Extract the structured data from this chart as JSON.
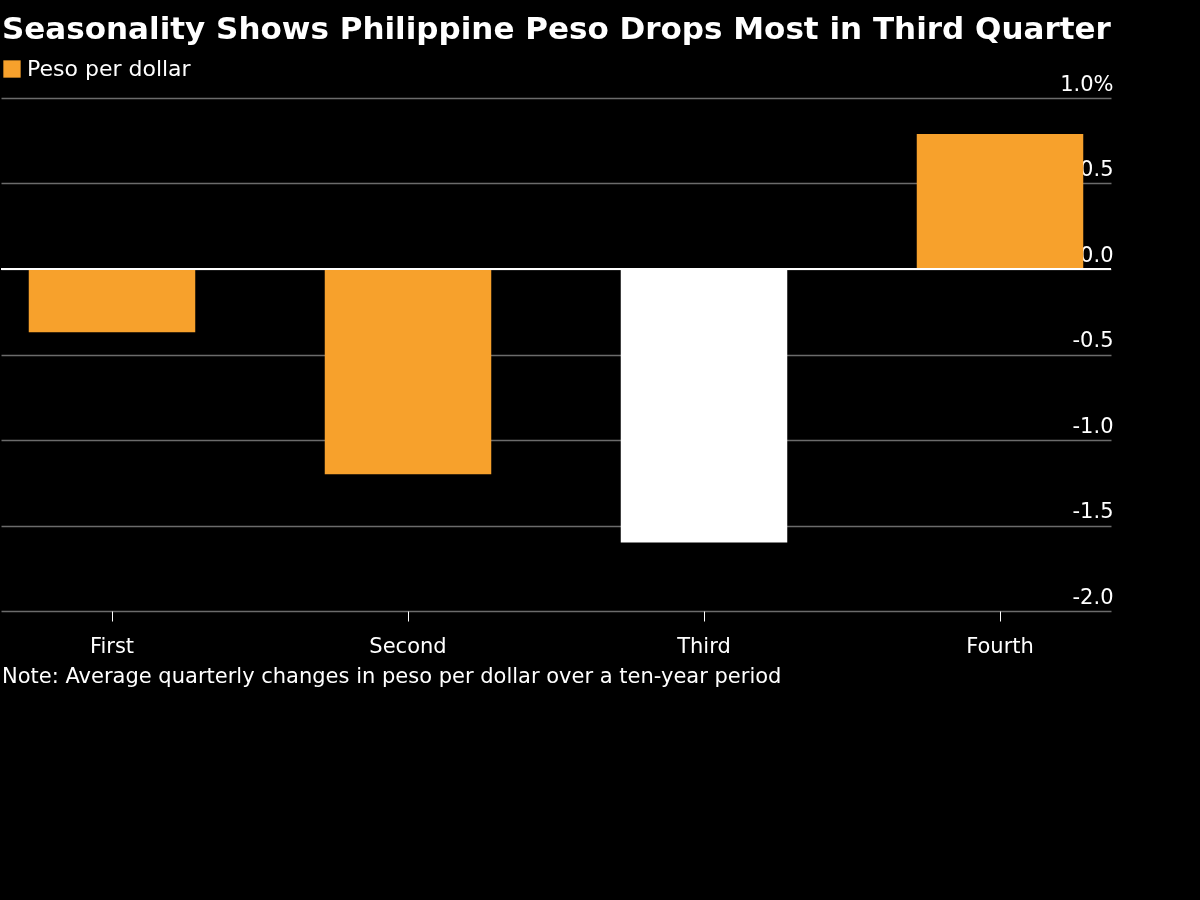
{
  "chart_data": {
    "type": "bar",
    "title": "Seasonality Shows Philippine Peso Drops Most in Third Quarter",
    "categories": [
      "First",
      "Second",
      "Third",
      "Fourth"
    ],
    "series": [
      {
        "name": "Peso per dollar",
        "color": "#f7a12c",
        "colors": [
          "#f7a12c",
          "#f7a12c",
          "#ffffff",
          "#f7a12c"
        ],
        "values": [
          -0.37,
          -1.2,
          -1.6,
          0.79
        ]
      }
    ],
    "ylim": [
      -2,
      1
    ],
    "yticks": [
      {
        "value": 1,
        "label": "1.0%"
      },
      {
        "value": 0.5,
        "label": "0.5"
      },
      {
        "value": 0,
        "label": "0.0"
      },
      {
        "value": -0.5,
        "label": "-0.5"
      },
      {
        "value": -1,
        "label": "-1.0"
      },
      {
        "value": -1.5,
        "label": "-1.5"
      },
      {
        "value": -2,
        "label": "-2.0"
      }
    ],
    "ref_lines": [
      {
        "axis": "y",
        "value": 0,
        "color": "#ffffff"
      }
    ],
    "grid": "y",
    "legend": "top left",
    "annotations": [
      "Note: Average quarterly changes in peso per dollar over a ten-year period"
    ]
  }
}
